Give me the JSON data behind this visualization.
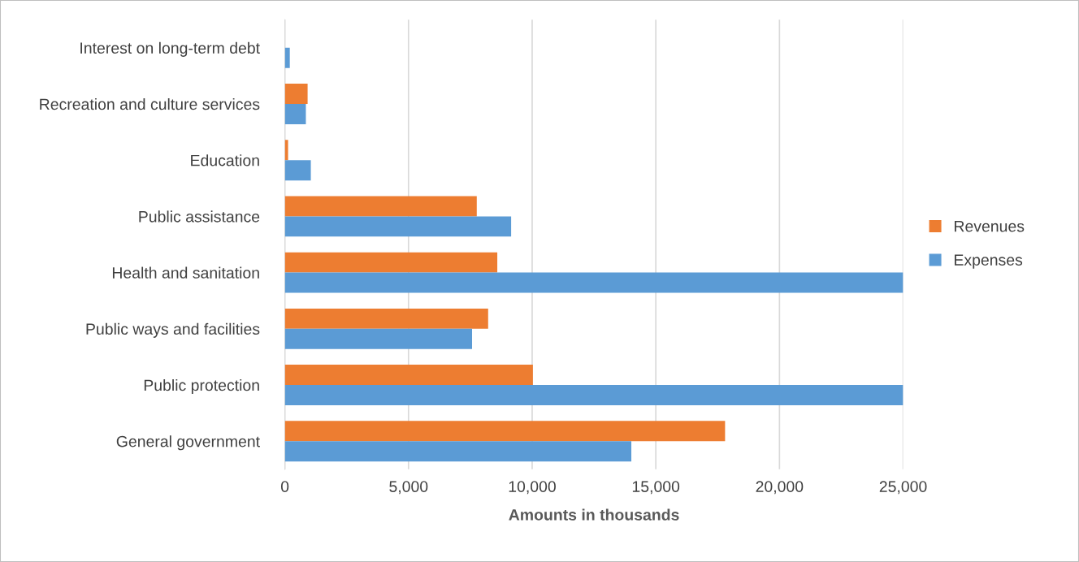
{
  "chart_data": {
    "type": "bar",
    "orientation": "horizontal",
    "xlabel": "Amounts in thousands",
    "categories": [
      "Interest on long-term debt",
      "Recreation and culture services",
      "Education",
      "Public assistance",
      "Health and sanitation",
      "Public ways and facilities",
      "Public protection",
      "General government"
    ],
    "series": [
      {
        "name": "Revenues",
        "color": "#ed7d31",
        "values": [
          null,
          920,
          130,
          7760,
          8590,
          8220,
          10030,
          17800
        ]
      },
      {
        "name": "Expenses",
        "color": "#5b9bd5",
        "values": [
          200,
          850,
          1050,
          9150,
          25000,
          7570,
          25000,
          14010
        ]
      }
    ],
    "xlim": [
      0,
      25000
    ],
    "xticks": [
      0,
      {
        "value": 5000,
        "label": "5,000"
      },
      {
        "value": 10000,
        "label": "10,000"
      },
      {
        "value": 15000,
        "label": "15,000"
      },
      {
        "value": 20000,
        "label": "20,000"
      },
      {
        "value": 25000,
        "label": "25,000"
      }
    ],
    "grid": "x",
    "legend": "right"
  }
}
